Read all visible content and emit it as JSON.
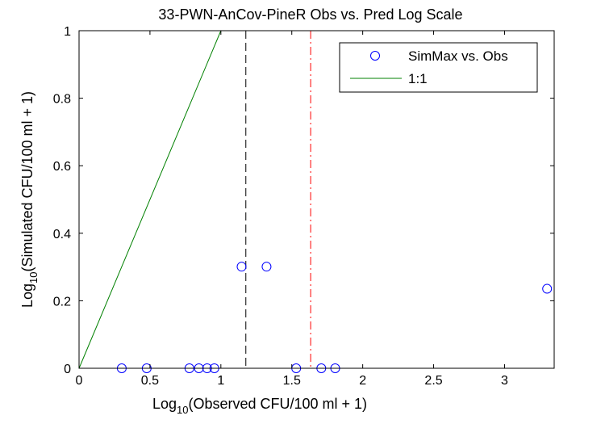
{
  "chart_data": {
    "type": "scatter",
    "title": "33-PWN-AnCov-PineR Obs vs. Pred Log Scale",
    "xlabel": {
      "prefix": "Log",
      "subscript": "10",
      "suffix": "(Observed CFU/100 ml + 1)"
    },
    "ylabel": {
      "prefix": "Log",
      "subscript": "10",
      "suffix": "(Simulated CFU/100 ml + 1)"
    },
    "xlim": [
      0,
      3.35
    ],
    "ylim": [
      0,
      1
    ],
    "xticks": [
      0,
      0.5,
      1,
      1.5,
      2,
      2.5,
      3
    ],
    "xtick_labels": [
      "0",
      "0.5",
      "1",
      "1.5",
      "2",
      "2.5",
      "3"
    ],
    "yticks": [
      0,
      0.2,
      0.4,
      0.6,
      0.8,
      1
    ],
    "ytick_labels": [
      "0",
      "0.2",
      "0.4",
      "0.6",
      "0.8",
      "1"
    ],
    "grid": false,
    "legend_position": "top-right",
    "series": [
      {
        "name": "SimMax vs. Obs",
        "kind": "markers",
        "color": "#0000ff",
        "points": [
          [
            0.301,
            0
          ],
          [
            0.477,
            0
          ],
          [
            0.778,
            0
          ],
          [
            0.845,
            0
          ],
          [
            0.903,
            0
          ],
          [
            0.954,
            0
          ],
          [
            1.146,
            0.301
          ],
          [
            1.322,
            0.301
          ],
          [
            1.531,
            0
          ],
          [
            1.708,
            0
          ],
          [
            1.806,
            0
          ],
          [
            3.3,
            0.2355
          ]
        ]
      },
      {
        "name": "1:1",
        "kind": "line",
        "color": "#008000",
        "points": [
          [
            0,
            0
          ],
          [
            1,
            1
          ]
        ]
      }
    ],
    "reference_lines": [
      {
        "x": 1.176,
        "color": "#000000",
        "style": "dashed"
      },
      {
        "x": 1.633,
        "color": "#ff0000",
        "style": "dash-dot"
      }
    ]
  }
}
